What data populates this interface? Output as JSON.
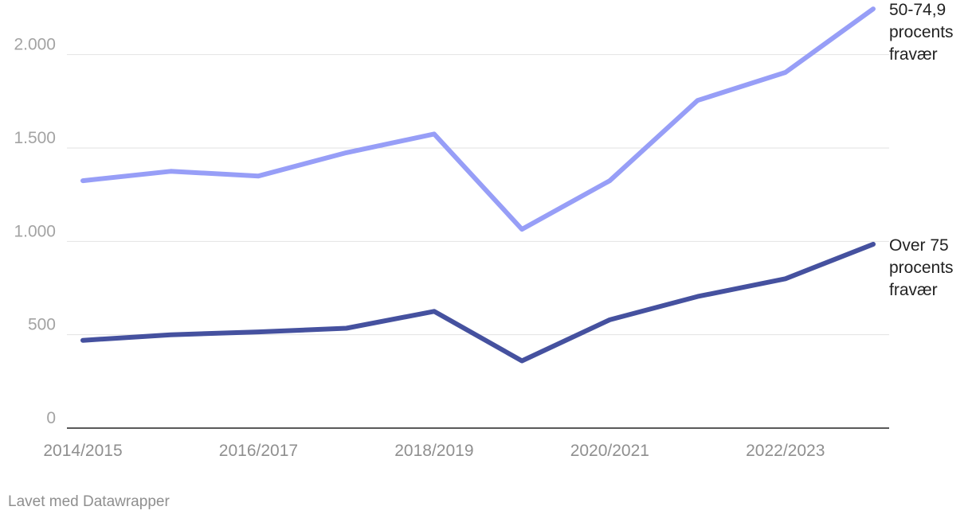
{
  "chart_data": {
    "type": "line",
    "categories": [
      "2014/2015",
      "2015/2016",
      "2016/2017",
      "2017/2018",
      "2018/2019",
      "2019/2020",
      "2020/2021",
      "2021/2022",
      "2022/2023",
      "2023/2024"
    ],
    "x_tick_labels": [
      "2014/2015",
      "2016/2017",
      "2018/2019",
      "2020/2021",
      "2022/2023"
    ],
    "y_ticks": [
      0,
      500,
      1000,
      1500,
      2000
    ],
    "y_tick_labels": [
      "0",
      "500",
      "1.000",
      "1.500",
      "2.000"
    ],
    "ylim": [
      0,
      2250
    ],
    "grid": true,
    "title": "",
    "xlabel": "",
    "ylabel": "",
    "series": [
      {
        "name": "50-74,9 procents fravær",
        "label_lines": [
          "50-74,9",
          "procents",
          "fravær"
        ],
        "color": "#979ef7",
        "values": [
          1325,
          1375,
          1350,
          1475,
          1575,
          1065,
          1325,
          1755,
          1905,
          2245
        ]
      },
      {
        "name": "Over 75 procents fravær",
        "label_lines": [
          "Over 75",
          "procents",
          "fravær"
        ],
        "color": "#45519f",
        "values": [
          470,
          500,
          515,
          535,
          625,
          360,
          580,
          705,
          800,
          985
        ]
      }
    ]
  },
  "credit": "Lavet med Datawrapper"
}
